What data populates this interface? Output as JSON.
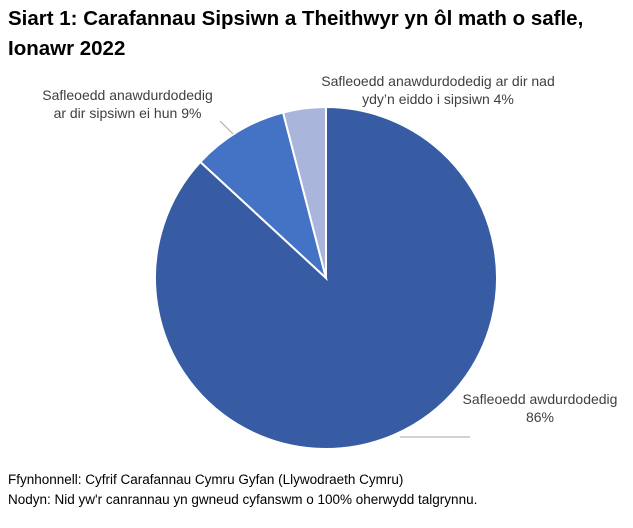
{
  "chart_data": {
    "type": "pie",
    "title": "Siart 1: Carafannau Sipsiwn a Theithwyr yn ôl math o safle, Ionawr 2022",
    "categories": [
      "Safleoedd awdurdodedig",
      "Safleoedd anawdurdodedig ar dir sipsiwn ei hun",
      "Safleoedd anawdurdodedig ar dir nad ydy’n eiddo i sipsiwn"
    ],
    "values": [
      86,
      9,
      4
    ],
    "value_labels": [
      "86%",
      "9%",
      "4%"
    ],
    "colors": [
      "#375ca3",
      "#4472c4",
      "#a9b5db"
    ],
    "source": "Ffynhonnell: Cyfrif Carafannau Cymru Gyfan (Llywodraeth Cymru)",
    "note": "Nodyn: Nid yw'r canrannau yn gwneud cyfanswm o 100% oherwydd talgrynnu."
  }
}
